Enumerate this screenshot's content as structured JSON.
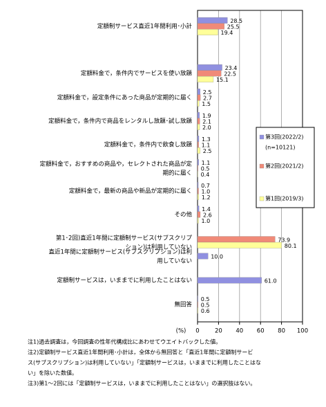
{
  "chart_data": {
    "type": "bar",
    "orientation": "horizontal",
    "categories": [
      "定額制サービス直近1年間利用･小計",
      "定額料金で，条件内でサービスを使い放題",
      "定額料金で，設定条件にあった商品が定期的に届く",
      "定額料金で，条件内で商品をレンタルし放題･試し放題",
      "定額料金で，条件内で飲食し放題",
      "定額料金で，おすすめの商品や，セレクトされた商品が定\n期的に届く",
      "定額料金で，最新の商品や新品が定期的に届く",
      "その他",
      "第1･2回)直近1年間に定額制サービス(サブスクリプ\nション)は利用していない",
      "直近1年間に定額制サービス(サブスクリプション)は利\n用していない",
      "定額制サービスは，いままでに利用したことはない",
      "無回答"
    ],
    "series": [
      {
        "name": "第3回(2022/2)",
        "color": "#9090e0",
        "values": [
          28.5,
          23.4,
          2.5,
          1.9,
          1.3,
          1.1,
          0.7,
          1.4,
          null,
          10,
          61,
          0.5
        ],
        "value_labels": [
          "28.5",
          "23.4",
          "2.5",
          "1.9",
          "1.3",
          "1.1",
          "0.7",
          "1.4",
          null,
          "10.0",
          "61.0",
          "0.5"
        ]
      },
      {
        "name": "第2回(2021/2)",
        "color": "#f08a78",
        "values": [
          25.5,
          22.5,
          2.7,
          2.1,
          1.1,
          0.5,
          1,
          2.6,
          73.9,
          null,
          null,
          0.5
        ],
        "value_labels": [
          "25.5",
          "22.5",
          "2.7",
          "2.1",
          "1.1",
          "0.5",
          "1.0",
          "2.6",
          "73.9",
          null,
          null,
          "0.5"
        ]
      },
      {
        "name": "第1回(2019/3)",
        "color": "#ffff99",
        "values": [
          19.4,
          15.1,
          1.5,
          2,
          2.5,
          0.4,
          1.2,
          1,
          80.1,
          null,
          null,
          0.6
        ],
        "value_labels": [
          "19.4",
          "15.1",
          "1.5",
          "2.0",
          "2.5",
          "0.4",
          "1.2",
          "1.0",
          "80.1",
          null,
          null,
          "0.6"
        ]
      }
    ],
    "legend_note": "(n=10121)",
    "xlim": [
      0,
      100
    ],
    "xticks": [
      0,
      20,
      40,
      60,
      80,
      100
    ],
    "grid": true,
    "unit_label": "(%)",
    "notes": [
      [
        "注1)過去調査は，今回調査の性年代構成比にあわせてウエイトバックした値。"
      ],
      [
        "注2)定額制サービス直近1年間利用･小計は，全体から無回答と「直近1年間に定額制サービ",
        "ス(サブスクリプション)は利用していない」「定額制サービスは，いままでに利用したことはな",
        "い」を除いた数値。"
      ],
      [
        "注3)第1～2回には「定額制サービスは，いままでに利用したことはない」の選択肢はない。"
      ]
    ]
  }
}
